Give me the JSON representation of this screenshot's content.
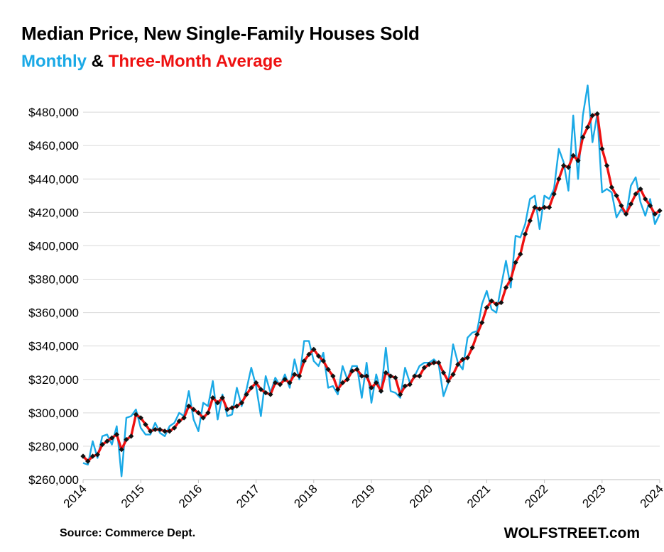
{
  "header": {
    "title": "Median Price, New Single-Family Houses Sold",
    "legend_monthly": "Monthly",
    "legend_amp": "&",
    "legend_avg": "Three-Month Average"
  },
  "footer": {
    "source": "Source: Commerce Dept.",
    "brand": "WOLFSTREET.com"
  },
  "colors": {
    "monthly": "#1aa9e6",
    "average": "#ee1111",
    "marker": "#111111",
    "grid": "#d9d9d9"
  },
  "chart_data": {
    "type": "line",
    "title": "Median Price, New Single-Family Houses Sold",
    "xlabel": "",
    "ylabel": "",
    "x_start": 2014,
    "x_end": 2024,
    "x_ticks": [
      "2014",
      "2015",
      "2016",
      "2017",
      "2018",
      "2019",
      "2020",
      "2021",
      "2022",
      "2023",
      "2024"
    ],
    "ylim": [
      260000,
      500000
    ],
    "y_ticks": [
      260000,
      280000,
      300000,
      320000,
      340000,
      360000,
      380000,
      400000,
      420000,
      440000,
      460000,
      480000
    ],
    "y_tick_labels": [
      "$260,000",
      "$280,000",
      "$300,000",
      "$320,000",
      "$340,000",
      "$360,000",
      "$380,000",
      "$400,000",
      "$420,000",
      "$440,000",
      "$460,000",
      "$480,000"
    ],
    "grid": true,
    "legend": "top-left",
    "series": [
      {
        "name": "Monthly",
        "values": [
          270000,
          269000,
          283000,
          273000,
          286000,
          287000,
          281000,
          292000,
          262000,
          297000,
          298000,
          302000,
          291000,
          287000,
          287000,
          294000,
          288000,
          286000,
          292000,
          294000,
          300000,
          298000,
          313000,
          296000,
          289000,
          306000,
          304000,
          319000,
          296000,
          311000,
          298000,
          299000,
          315000,
          304000,
          314000,
          327000,
          316000,
          298000,
          322000,
          312000,
          321000,
          316000,
          323000,
          315000,
          332000,
          320000,
          343000,
          343000,
          331000,
          328000,
          336000,
          315000,
          316000,
          311000,
          328000,
          320000,
          328000,
          328000,
          309000,
          330000,
          306000,
          323000,
          312000,
          339000,
          313000,
          312000,
          309000,
          327000,
          318000,
          322000,
          328000,
          330000,
          330000,
          332000,
          329000,
          310000,
          318000,
          341000,
          330000,
          326000,
          345000,
          348000,
          349000,
          365000,
          373000,
          362000,
          360000,
          376000,
          391000,
          375000,
          406000,
          405000,
          413000,
          428000,
          430000,
          410000,
          430000,
          428000,
          434000,
          458000,
          450000,
          433000,
          478000,
          440000,
          478000,
          496000,
          462000,
          479000,
          432000,
          434000,
          432000,
          417000,
          422000,
          418000,
          436000,
          441000,
          426000,
          418000,
          428000,
          413000,
          419000
        ]
      },
      {
        "name": "Three-Month Average",
        "values": [
          274000,
          271000,
          274000,
          275000,
          281000,
          283000,
          285000,
          287000,
          278000,
          284000,
          286000,
          299000,
          297000,
          293000,
          289000,
          290000,
          290000,
          289000,
          289000,
          291000,
          295000,
          297000,
          304000,
          302000,
          300000,
          297000,
          300000,
          309000,
          306000,
          309000,
          302000,
          303000,
          304000,
          306000,
          311000,
          315000,
          318000,
          314000,
          312000,
          311000,
          318000,
          317000,
          320000,
          318000,
          323000,
          322000,
          331000,
          335000,
          338000,
          334000,
          331000,
          326000,
          322000,
          314000,
          318000,
          320000,
          325000,
          326000,
          322000,
          322000,
          315000,
          318000,
          313000,
          324000,
          322000,
          321000,
          311000,
          316000,
          317000,
          322000,
          322000,
          327000,
          329000,
          330000,
          330000,
          324000,
          319000,
          323000,
          329000,
          332000,
          333000,
          339000,
          347000,
          354000,
          363000,
          367000,
          365000,
          366000,
          375000,
          380000,
          390000,
          395000,
          407000,
          415000,
          423000,
          422000,
          423000,
          423000,
          431000,
          440000,
          448000,
          447000,
          454000,
          451000,
          465000,
          471000,
          478000,
          479000,
          458000,
          448000,
          435000,
          430000,
          424000,
          419000,
          425000,
          431000,
          434000,
          428000,
          424000,
          419000,
          421000
        ]
      }
    ]
  }
}
